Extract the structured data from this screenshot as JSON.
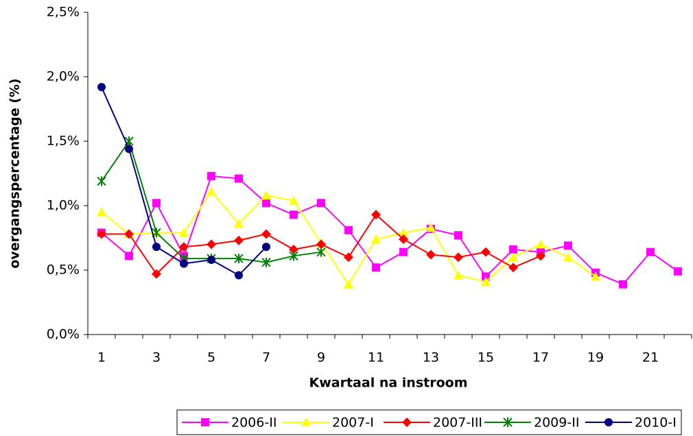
{
  "chart_data": {
    "type": "line",
    "ylabel": "overgangspercentage (%)",
    "xlabel": "Kwartaal na instroom",
    "categories": [
      "1",
      null,
      "3",
      null,
      "5",
      null,
      "7",
      null,
      "9",
      null,
      "11",
      null,
      "13",
      null,
      "15",
      null,
      "17",
      null,
      "19",
      null,
      "21",
      null
    ],
    "ylim": [
      0,
      2.5
    ],
    "yticks": [
      {
        "value": 0,
        "label": "0,0%"
      },
      {
        "value": 0.5,
        "label": "0,5%"
      },
      {
        "value": 1,
        "label": "1,0%"
      },
      {
        "value": 1.5,
        "label": "1,5%"
      },
      {
        "value": 2,
        "label": "2,0%"
      },
      {
        "value": 2.5,
        "label": "2,5%"
      }
    ],
    "grid": false,
    "legend": "bottom",
    "series": [
      {
        "name": "2006-II",
        "color": "#ff00ff",
        "marker": "square",
        "values": [
          0.79,
          0.61,
          1.02,
          0.61,
          1.23,
          1.21,
          1.02,
          0.93,
          1.02,
          0.81,
          0.52,
          0.64,
          0.82,
          0.77,
          0.45,
          0.66,
          0.64,
          0.69,
          0.48,
          0.39,
          0.64,
          0.49
        ]
      },
      {
        "name": "2007-I",
        "color": "#ffff00",
        "marker": "triangle",
        "values": [
          0.95,
          0.78,
          0.79,
          0.79,
          1.11,
          0.86,
          1.08,
          1.04,
          0.71,
          0.39,
          0.74,
          0.79,
          0.83,
          0.46,
          0.41,
          0.6,
          0.7,
          0.6,
          0.45,
          null,
          null,
          null
        ]
      },
      {
        "name": "2007-III",
        "color": "#ff0000",
        "marker": "diamond",
        "values": [
          0.78,
          0.78,
          0.47,
          0.68,
          0.7,
          0.73,
          0.78,
          0.66,
          0.7,
          0.6,
          0.93,
          0.74,
          0.62,
          0.6,
          0.64,
          0.52,
          0.61,
          null,
          null,
          null,
          null,
          null
        ]
      },
      {
        "name": "2009-II",
        "color": "#008000",
        "marker": "asterisk",
        "values": [
          1.19,
          1.5,
          0.79,
          0.59,
          0.59,
          0.59,
          0.56,
          0.61,
          0.64,
          null,
          null,
          null,
          null,
          null,
          null,
          null,
          null,
          null,
          null,
          null,
          null,
          null
        ]
      },
      {
        "name": "2010-I",
        "color": "#000080",
        "marker": "circle",
        "values": [
          1.92,
          1.44,
          0.68,
          0.55,
          0.58,
          0.46,
          0.68,
          null,
          null,
          null,
          null,
          null,
          null,
          null,
          null,
          null,
          null,
          null,
          null,
          null,
          null,
          null
        ]
      }
    ]
  }
}
